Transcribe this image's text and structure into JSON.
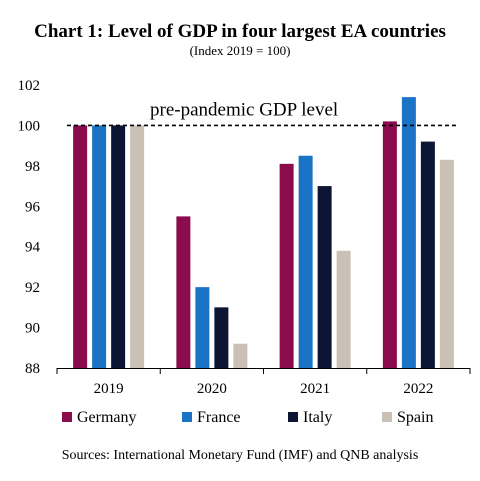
{
  "chart_data": {
    "type": "bar",
    "title": "Chart 1: Level of GDP in four largest EA countries",
    "subtitle": "(Index 2019 = 100)",
    "categories": [
      "2019",
      "2020",
      "2021",
      "2022"
    ],
    "series": [
      {
        "name": "Germany",
        "color": "#8a0c4c",
        "values": [
          100,
          95.5,
          98.1,
          100.2
        ]
      },
      {
        "name": "France",
        "color": "#1b73c6",
        "values": [
          100,
          92.0,
          98.5,
          101.4
        ]
      },
      {
        "name": "Italy",
        "color": "#0d1535",
        "values": [
          100,
          91.0,
          97.0,
          99.2
        ]
      },
      {
        "name": "Spain",
        "color": "#cbc0b5",
        "values": [
          100,
          89.2,
          93.8,
          98.3
        ]
      }
    ],
    "ylim": [
      88,
      102
    ],
    "yticks": [
      "88",
      "90",
      "92",
      "94",
      "96",
      "98",
      "100",
      "102"
    ],
    "reference_line": {
      "value": 100,
      "label": "pre-pandemic GDP level",
      "style": "dashed"
    },
    "grid": false,
    "legend_position": "bottom",
    "source": "Sources: International Monetary Fund (IMF) and QNB analysis"
  }
}
